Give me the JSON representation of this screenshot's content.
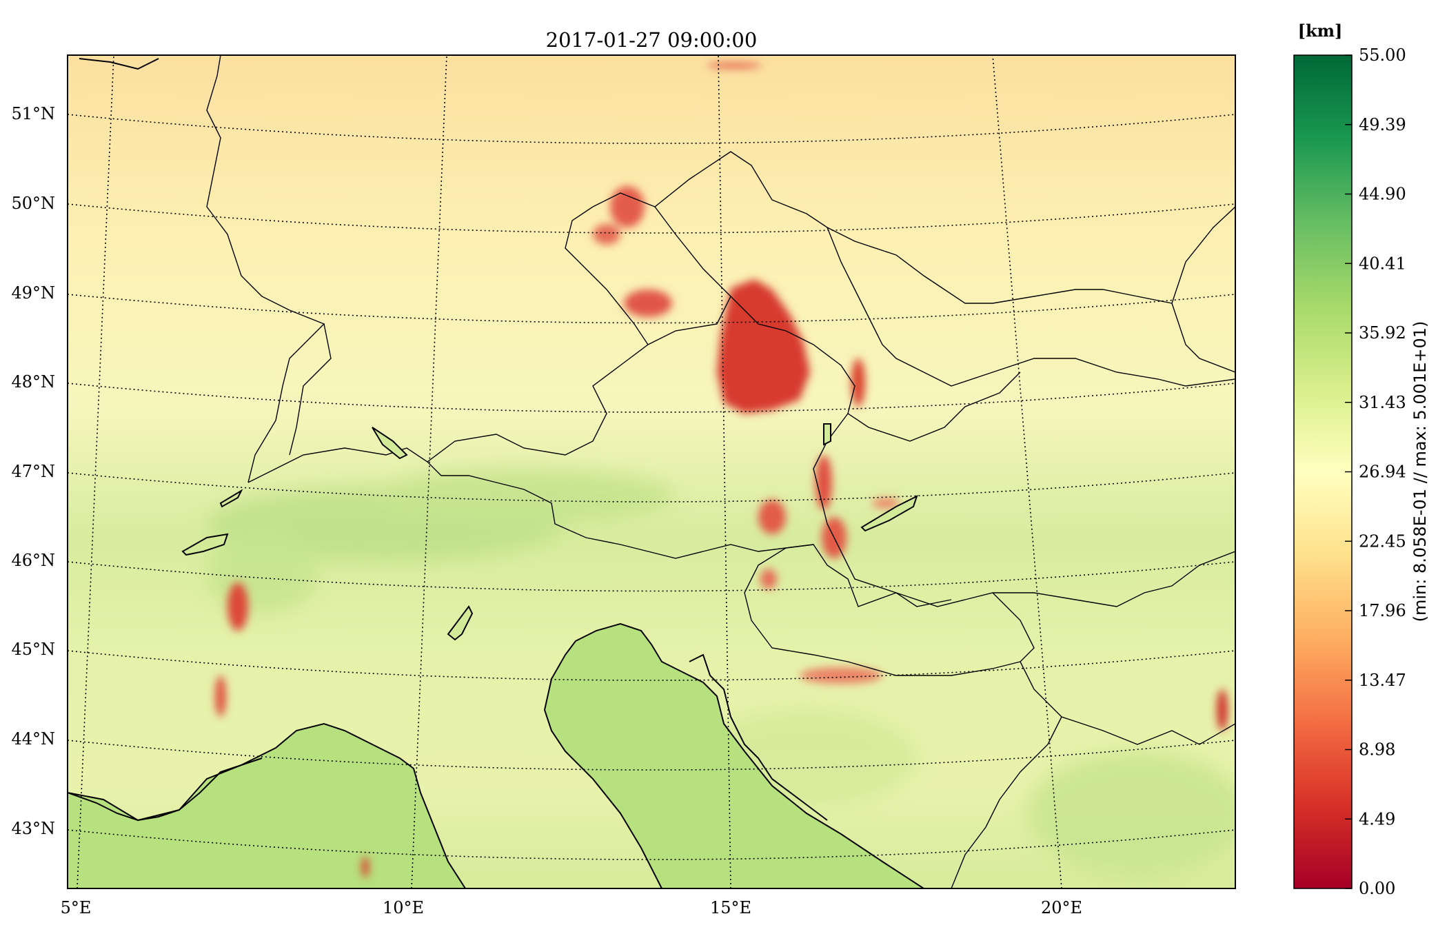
{
  "title": "2017-01-27 09:00:00",
  "map": {
    "lon_labels": [
      "5°E",
      "10°E",
      "15°E",
      "20°E"
    ],
    "lat_labels": [
      "43°N",
      "44°N",
      "45°N",
      "46°N",
      "47°N",
      "48°N",
      "49°N",
      "50°N",
      "51°N"
    ],
    "colors": {
      "high_green": "#b6dd7a",
      "mid_green": "#cde79a",
      "light_yellow": "#fbf7c2",
      "pale_orange": "#fbe3a6",
      "low_red": "#d7372c",
      "sea": "#b7e07e"
    }
  },
  "colorbar": {
    "unit": "[km]",
    "ticks": [
      "55.00",
      "49.39",
      "44.90",
      "40.41",
      "35.92",
      "31.43",
      "26.94",
      "22.45",
      "17.96",
      "13.47",
      "8.98",
      "4.49",
      "0.00"
    ],
    "side_label": "(min: 8.058E-01 // max: 5.001E+01)",
    "colormap": "RdYlGn"
  }
}
